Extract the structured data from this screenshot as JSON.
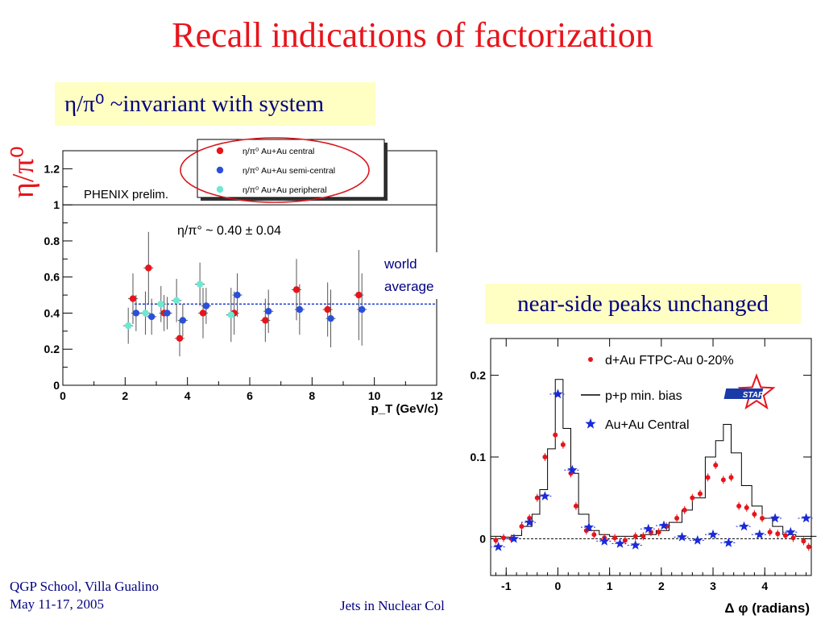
{
  "slide": {
    "title": "Recall indications of factorization",
    "box1_text": "η/π⁰ ~invariant with system",
    "box2_text": "near-side peaks unchanged",
    "left_ylabel": "η/π⁰",
    "footer_left_1": "QGP School, Villa Gualino",
    "footer_left_2": "May 11-17, 2005",
    "footer_center": "Jets in Nuclear Col"
  },
  "colors": {
    "title": "#e8141b",
    "box_text": "#000080",
    "box_bg": "#ffffc4",
    "red": "#e8141b",
    "blue": "#2a4fd8",
    "cyan": "#6de8d2"
  },
  "chart_data": [
    {
      "type": "scatter",
      "xlabel": "p_T (GeV/c)",
      "xlim": [
        0,
        12
      ],
      "ylim": [
        0,
        1.3
      ],
      "xticks": [
        "0",
        "2",
        "4",
        "6",
        "8",
        "10",
        "12"
      ],
      "yticks": [
        "0",
        "0.2",
        "0.4",
        "0.6",
        "0.8",
        "1",
        "1.2"
      ],
      "annotation_prelim": "PHENIX prelim.",
      "annotation_fit": "η/π° ~ 0.40 ± 0.04",
      "annotation_world_1": "world",
      "annotation_world_2": "average",
      "world_average": 0.45,
      "legend": [
        {
          "label": "η/π⁰ Au+Au central",
          "color": "#e8141b"
        },
        {
          "label": "η/π⁰ Au+Au semi-central",
          "color": "#2a4fd8"
        },
        {
          "label": "η/π⁰ Au+Au peripheral",
          "color": "#6de8d2"
        }
      ],
      "series": [
        {
          "name": "η/π⁰ Au+Au central",
          "points": [
            {
              "x": 2.25,
              "y": 0.48,
              "err": 0.14
            },
            {
              "x": 2.75,
              "y": 0.65,
              "err": 0.2
            },
            {
              "x": 3.25,
              "y": 0.4,
              "err": 0.1
            },
            {
              "x": 3.75,
              "y": 0.26,
              "err": 0.1
            },
            {
              "x": 4.5,
              "y": 0.4,
              "err": 0.14
            },
            {
              "x": 5.5,
              "y": 0.4,
              "err": 0.12
            },
            {
              "x": 6.5,
              "y": 0.36,
              "err": 0.12
            },
            {
              "x": 7.5,
              "y": 0.53,
              "err": 0.17
            },
            {
              "x": 8.5,
              "y": 0.42,
              "err": 0.15
            },
            {
              "x": 9.5,
              "y": 0.5,
              "err": 0.25
            }
          ]
        },
        {
          "name": "η/π⁰ Au+Au semi-central",
          "points": [
            {
              "x": 2.35,
              "y": 0.4,
              "err": 0.1
            },
            {
              "x": 2.85,
              "y": 0.38,
              "err": 0.1
            },
            {
              "x": 3.35,
              "y": 0.4,
              "err": 0.09
            },
            {
              "x": 3.85,
              "y": 0.36,
              "err": 0.09
            },
            {
              "x": 4.6,
              "y": 0.44,
              "err": 0.1
            },
            {
              "x": 5.6,
              "y": 0.5,
              "err": 0.12
            },
            {
              "x": 6.6,
              "y": 0.41,
              "err": 0.12
            },
            {
              "x": 7.6,
              "y": 0.42,
              "err": 0.14
            },
            {
              "x": 8.6,
              "y": 0.37,
              "err": 0.16
            },
            {
              "x": 9.6,
              "y": 0.42,
              "err": 0.2
            }
          ]
        },
        {
          "name": "η/π⁰ Au+Au peripheral",
          "points": [
            {
              "x": 2.1,
              "y": 0.33,
              "err": 0.1
            },
            {
              "x": 2.65,
              "y": 0.4,
              "err": 0.12
            },
            {
              "x": 3.15,
              "y": 0.45,
              "err": 0.1
            },
            {
              "x": 3.65,
              "y": 0.47,
              "err": 0.12
            },
            {
              "x": 4.4,
              "y": 0.56,
              "err": 0.12
            },
            {
              "x": 5.4,
              "y": 0.39,
              "err": 0.15
            }
          ]
        }
      ]
    },
    {
      "type": "line",
      "xlabel": "Δ φ (radians)",
      "xlim": [
        -1.3,
        4.9
      ],
      "ylim": [
        -0.045,
        0.245
      ],
      "xticks": [
        "-1",
        "0",
        "1",
        "2",
        "3",
        "4"
      ],
      "yticks": [
        "0",
        "0.1",
        "0.2"
      ],
      "logo_text": "STAR",
      "legend": [
        {
          "label": "d+Au FTPC-Au 0-20%",
          "color": "#e8141b"
        },
        {
          "label": "p+p min. bias",
          "color": "#000000"
        },
        {
          "label": "Au+Au Central",
          "color": "#1a2ad8"
        }
      ],
      "series": [
        {
          "name": "d+Au FTPC-Au 0-20%",
          "points": [
            {
              "x": -1.2,
              "y": -0.002
            },
            {
              "x": -1.05,
              "y": 0.001
            },
            {
              "x": -0.9,
              "y": 0.0
            },
            {
              "x": -0.7,
              "y": 0.015
            },
            {
              "x": -0.55,
              "y": 0.025
            },
            {
              "x": -0.4,
              "y": 0.05
            },
            {
              "x": -0.25,
              "y": 0.1
            },
            {
              "x": -0.05,
              "y": 0.127
            },
            {
              "x": 0.1,
              "y": 0.115
            },
            {
              "x": 0.25,
              "y": 0.08
            },
            {
              "x": 0.35,
              "y": 0.04
            },
            {
              "x": 0.55,
              "y": 0.01
            },
            {
              "x": 0.7,
              "y": 0.005
            },
            {
              "x": 0.9,
              "y": 0.001
            },
            {
              "x": 1.1,
              "y": 0.001
            },
            {
              "x": 1.3,
              "y": -0.002
            },
            {
              "x": 1.5,
              "y": 0.003
            },
            {
              "x": 1.65,
              "y": 0.003
            },
            {
              "x": 1.8,
              "y": 0.008
            },
            {
              "x": 1.95,
              "y": 0.008
            },
            {
              "x": 2.1,
              "y": 0.015
            },
            {
              "x": 2.3,
              "y": 0.025
            },
            {
              "x": 2.45,
              "y": 0.035
            },
            {
              "x": 2.6,
              "y": 0.05
            },
            {
              "x": 2.75,
              "y": 0.055
            },
            {
              "x": 2.9,
              "y": 0.075
            },
            {
              "x": 3.05,
              "y": 0.09
            },
            {
              "x": 3.2,
              "y": 0.072
            },
            {
              "x": 3.35,
              "y": 0.075
            },
            {
              "x": 3.5,
              "y": 0.04
            },
            {
              "x": 3.65,
              "y": 0.038
            },
            {
              "x": 3.8,
              "y": 0.03
            },
            {
              "x": 3.95,
              "y": 0.025
            },
            {
              "x": 4.1,
              "y": 0.008
            },
            {
              "x": 4.25,
              "y": 0.006
            },
            {
              "x": 4.4,
              "y": 0.004
            },
            {
              "x": 4.55,
              "y": 0.001
            },
            {
              "x": 4.75,
              "y": -0.003
            },
            {
              "x": 4.85,
              "y": -0.01
            }
          ]
        },
        {
          "name": "p+p min. bias",
          "points": [
            {
              "x": -1.3,
              "y": 0.003
            },
            {
              "x": -1.1,
              "y": 0.002
            },
            {
              "x": -0.9,
              "y": 0.004
            },
            {
              "x": -0.7,
              "y": 0.015
            },
            {
              "x": -0.5,
              "y": 0.03
            },
            {
              "x": -0.35,
              "y": 0.06
            },
            {
              "x": -0.2,
              "y": 0.11
            },
            {
              "x": -0.05,
              "y": 0.195
            },
            {
              "x": 0.1,
              "y": 0.135
            },
            {
              "x": 0.25,
              "y": 0.08
            },
            {
              "x": 0.4,
              "y": 0.03
            },
            {
              "x": 0.6,
              "y": 0.01
            },
            {
              "x": 0.8,
              "y": 0.005
            },
            {
              "x": 1.0,
              "y": 0.003
            },
            {
              "x": 1.3,
              "y": 0.003
            },
            {
              "x": 1.6,
              "y": 0.005
            },
            {
              "x": 1.9,
              "y": 0.01
            },
            {
              "x": 2.15,
              "y": 0.02
            },
            {
              "x": 2.4,
              "y": 0.035
            },
            {
              "x": 2.6,
              "y": 0.05
            },
            {
              "x": 2.85,
              "y": 0.1
            },
            {
              "x": 3.05,
              "y": 0.12
            },
            {
              "x": 3.2,
              "y": 0.14
            },
            {
              "x": 3.35,
              "y": 0.105
            },
            {
              "x": 3.55,
              "y": 0.065
            },
            {
              "x": 3.75,
              "y": 0.04
            },
            {
              "x": 3.95,
              "y": 0.025
            },
            {
              "x": 4.15,
              "y": 0.015
            },
            {
              "x": 4.35,
              "y": 0.005
            },
            {
              "x": 4.6,
              "y": 0.003
            },
            {
              "x": 4.9,
              "y": 0.003
            }
          ]
        },
        {
          "name": "Au+Au Central",
          "points": [
            {
              "x": -1.15,
              "y": -0.01
            },
            {
              "x": -0.85,
              "y": 0.0
            },
            {
              "x": -0.55,
              "y": 0.02
            },
            {
              "x": -0.25,
              "y": 0.052
            },
            {
              "x": 0.0,
              "y": 0.177
            },
            {
              "x": 0.28,
              "y": 0.084
            },
            {
              "x": 0.6,
              "y": 0.014
            },
            {
              "x": 0.9,
              "y": -0.003
            },
            {
              "x": 1.2,
              "y": -0.006
            },
            {
              "x": 1.5,
              "y": -0.008
            },
            {
              "x": 1.75,
              "y": 0.012
            },
            {
              "x": 2.05,
              "y": 0.016
            },
            {
              "x": 2.4,
              "y": 0.002
            },
            {
              "x": 2.7,
              "y": -0.002
            },
            {
              "x": 3.0,
              "y": 0.005
            },
            {
              "x": 3.3,
              "y": -0.005
            },
            {
              "x": 3.6,
              "y": 0.015
            },
            {
              "x": 3.9,
              "y": 0.005
            },
            {
              "x": 4.2,
              "y": 0.025
            },
            {
              "x": 4.5,
              "y": 0.008
            },
            {
              "x": 4.8,
              "y": 0.025
            }
          ]
        }
      ]
    }
  ]
}
